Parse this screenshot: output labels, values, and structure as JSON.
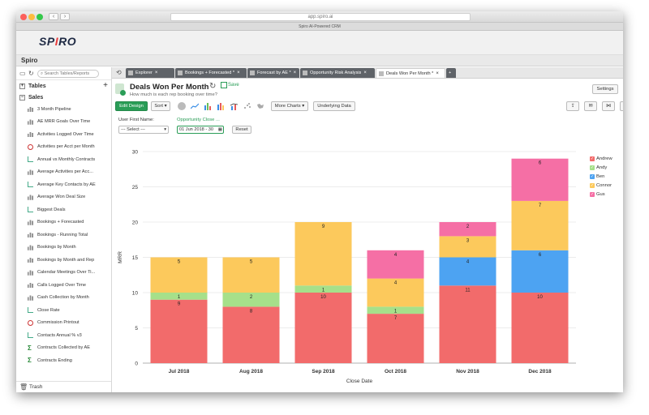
{
  "browser": {
    "url": "app.spiro.ai",
    "tab_title": "Spiro AI-Powered CRM"
  },
  "app": {
    "logo_text": "SPIRO",
    "section_title": "Spiro"
  },
  "sidebar": {
    "search_placeholder": "Search Tables/Reports",
    "tables_label": "Tables",
    "sales_label": "Sales",
    "items": [
      {
        "label": "3 Month Pipeline",
        "icon": "bar-chart-icon"
      },
      {
        "label": "AE MRR Goals Over Time",
        "icon": "bar-chart-icon"
      },
      {
        "label": "Activities Logged Over Time",
        "icon": "bar-chart-icon"
      },
      {
        "label": "Activities per Acct per Month",
        "icon": "magnifier-icon"
      },
      {
        "label": "Annual vs Monthly Contracts",
        "icon": "trend-chart-icon"
      },
      {
        "label": "Average Activities per Acc...",
        "icon": "bar-chart-icon"
      },
      {
        "label": "Average Key Contacts by AE",
        "icon": "trend-chart-icon"
      },
      {
        "label": "Average Won Deal Size",
        "icon": "bar-chart-icon"
      },
      {
        "label": "Biggest Deals",
        "icon": "trend-chart-icon"
      },
      {
        "label": "Bookings + Forecasted",
        "icon": "bar-chart-icon"
      },
      {
        "label": "Bookings - Running Total",
        "icon": "bar-chart-icon"
      },
      {
        "label": "Bookings by Month",
        "icon": "bar-chart-icon"
      },
      {
        "label": "Bookings by Month and Rep",
        "icon": "bar-chart-icon"
      },
      {
        "label": "Calendar Meetings Over Ti...",
        "icon": "bar-chart-icon"
      },
      {
        "label": "Calls Logged Over Time",
        "icon": "bar-chart-icon"
      },
      {
        "label": "Cash Collection by Month",
        "icon": "bar-chart-icon"
      },
      {
        "label": "Close Rate",
        "icon": "trend-chart-icon"
      },
      {
        "label": "Commission Printout",
        "icon": "magnifier-icon"
      },
      {
        "label": "Contacts Annual % v3",
        "icon": "trend-chart-icon"
      },
      {
        "label": "Contracts Collected by AE",
        "icon": "sum-icon"
      },
      {
        "label": "Contracts Ending",
        "icon": "sum-icon"
      }
    ],
    "trash_label": "Trash"
  },
  "tabs": [
    {
      "label": "Explorer"
    },
    {
      "label": "Bookings + Forecasted *"
    },
    {
      "label": "Forecast by AE *"
    },
    {
      "label": "Opportunity Risk Analysis"
    },
    {
      "label": "Deals Won Per Month *",
      "active": true
    }
  ],
  "report": {
    "title": "Deals Won Per Month",
    "subtitle": "How much is each rep booking over time?",
    "save_label": "Save",
    "settings_label": "Settings"
  },
  "toolbar": {
    "edit_design_label": "Edit Design",
    "sort_label": "Sort",
    "more_charts_label": "More Charts",
    "underlying_data_label": "Underlying Data"
  },
  "filters": {
    "user_label": "User First Name:",
    "user_value": "--- Select ---",
    "date_label": "Opportunity Close ...",
    "date_value": "01 Jun 2018 - 30",
    "reset_label": "Reset"
  },
  "chart_data": {
    "type": "bar",
    "stacked": true,
    "xlabel": "Close Date",
    "ylabel": "MRR",
    "ylim": [
      0,
      30
    ],
    "yticks": [
      0,
      5,
      10,
      15,
      20,
      25,
      30
    ],
    "categories": [
      "Jul 2018",
      "Aug 2018",
      "Sep 2018",
      "Oct 2018",
      "Nov 2018",
      "Dec 2018"
    ],
    "series": [
      {
        "name": "Andrew",
        "color": "#f26b6b",
        "values": [
          9,
          8,
          10,
          7,
          11,
          10
        ]
      },
      {
        "name": "Andy",
        "color": "#a6e08a",
        "values": [
          1,
          2,
          1,
          1,
          0,
          0
        ]
      },
      {
        "name": "Ben",
        "color": "#4da3f2",
        "values": [
          0,
          0,
          0,
          0,
          4,
          6
        ]
      },
      {
        "name": "Connor",
        "color": "#fcc95c",
        "values": [
          5,
          5,
          9,
          4,
          3,
          7
        ]
      },
      {
        "name": "Gus",
        "color": "#f56fa5",
        "values": [
          0,
          0,
          0,
          4,
          2,
          6
        ]
      }
    ],
    "grid": true,
    "legend_position": "top-right"
  }
}
